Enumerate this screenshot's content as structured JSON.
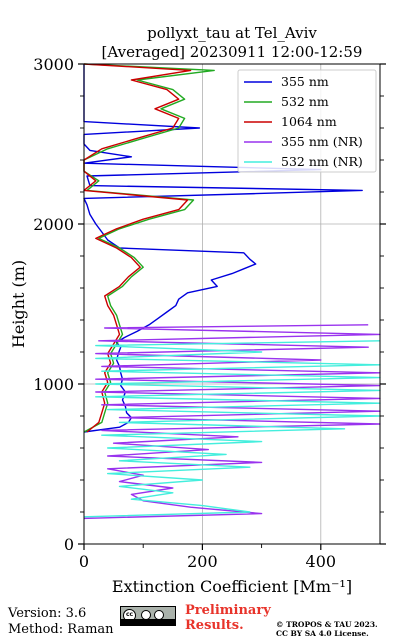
{
  "chart_data": {
    "type": "line",
    "title": "pollyxt_tau at Tel_Aviv",
    "subtitle": "[Averaged] 20230911 12:00-12:59",
    "xlabel": "Extinction Coefficient [Mm⁻¹]",
    "ylabel": "Height (m)",
    "xlim": [
      0,
      500
    ],
    "ylim": [
      0,
      3000
    ],
    "xticks": [
      0,
      200,
      400
    ],
    "yticks": [
      0,
      1000,
      2000,
      3000
    ],
    "grid": true,
    "legend_position": "top-right",
    "series": [
      {
        "name": "355 nm",
        "color": "#0000dd",
        "points": [
          [
            0,
            700
          ],
          [
            60,
            730
          ],
          [
            75,
            760
          ],
          [
            80,
            790
          ],
          [
            72,
            820
          ],
          [
            70,
            860
          ],
          [
            65,
            900
          ],
          [
            70,
            950
          ],
          [
            62,
            990
          ],
          [
            65,
            1030
          ],
          [
            62,
            1070
          ],
          [
            60,
            1110
          ],
          [
            55,
            1150
          ],
          [
            58,
            1190
          ],
          [
            62,
            1230
          ],
          [
            55,
            1260
          ],
          [
            68,
            1290
          ],
          [
            90,
            1330
          ],
          [
            110,
            1370
          ],
          [
            125,
            1410
          ],
          [
            140,
            1450
          ],
          [
            155,
            1490
          ],
          [
            160,
            1530
          ],
          [
            175,
            1570
          ],
          [
            225,
            1610
          ],
          [
            215,
            1650
          ],
          [
            250,
            1690
          ],
          [
            270,
            1720
          ],
          [
            290,
            1750
          ],
          [
            280,
            1780
          ],
          [
            270,
            1820
          ],
          [
            60,
            1850
          ],
          [
            40,
            1900
          ],
          [
            30,
            1950
          ],
          [
            20,
            2000
          ],
          [
            10,
            2060
          ],
          [
            5,
            2120
          ],
          [
            0,
            2160
          ],
          [
            290,
            2190
          ],
          [
            470,
            2210
          ],
          [
            10,
            2240
          ],
          [
            5,
            2300
          ],
          [
            400,
            2340
          ],
          [
            0,
            2380
          ],
          [
            80,
            2420
          ],
          [
            10,
            2460
          ],
          [
            0,
            2500
          ],
          [
            0,
            2560
          ],
          [
            195,
            2600
          ],
          [
            0,
            2640
          ],
          [
            0,
            2700
          ],
          [
            0,
            2800
          ],
          [
            0,
            2900
          ],
          [
            0,
            3000
          ]
        ]
      },
      {
        "name": "532 nm",
        "color": "#22aa22",
        "points": [
          [
            0,
            700
          ],
          [
            30,
            760
          ],
          [
            35,
            820
          ],
          [
            40,
            880
          ],
          [
            35,
            950
          ],
          [
            45,
            1010
          ],
          [
            40,
            1070
          ],
          [
            50,
            1130
          ],
          [
            45,
            1190
          ],
          [
            55,
            1250
          ],
          [
            65,
            1310
          ],
          [
            60,
            1370
          ],
          [
            55,
            1430
          ],
          [
            45,
            1490
          ],
          [
            40,
            1550
          ],
          [
            65,
            1610
          ],
          [
            80,
            1670
          ],
          [
            100,
            1730
          ],
          [
            85,
            1790
          ],
          [
            60,
            1850
          ],
          [
            25,
            1910
          ],
          [
            60,
            1970
          ],
          [
            110,
            2030
          ],
          [
            170,
            2090
          ],
          [
            185,
            2150
          ],
          [
            5,
            2210
          ],
          [
            25,
            2270
          ],
          [
            0,
            2330
          ],
          [
            0,
            2400
          ],
          [
            40,
            2470
          ],
          [
            95,
            2530
          ],
          [
            160,
            2600
          ],
          [
            170,
            2660
          ],
          [
            130,
            2720
          ],
          [
            170,
            2780
          ],
          [
            150,
            2840
          ],
          [
            90,
            2900
          ],
          [
            220,
            2960
          ],
          [
            0,
            3000
          ]
        ]
      },
      {
        "name": "1064 nm",
        "color": "#cc0000",
        "points": [
          [
            5,
            700
          ],
          [
            25,
            760
          ],
          [
            30,
            820
          ],
          [
            35,
            880
          ],
          [
            30,
            950
          ],
          [
            40,
            1010
          ],
          [
            35,
            1070
          ],
          [
            45,
            1130
          ],
          [
            40,
            1190
          ],
          [
            50,
            1250
          ],
          [
            60,
            1310
          ],
          [
            55,
            1370
          ],
          [
            50,
            1430
          ],
          [
            40,
            1490
          ],
          [
            35,
            1550
          ],
          [
            60,
            1610
          ],
          [
            75,
            1670
          ],
          [
            95,
            1730
          ],
          [
            80,
            1790
          ],
          [
            55,
            1850
          ],
          [
            20,
            1910
          ],
          [
            55,
            1970
          ],
          [
            100,
            2030
          ],
          [
            160,
            2090
          ],
          [
            175,
            2150
          ],
          [
            0,
            2210
          ],
          [
            20,
            2270
          ],
          [
            0,
            2330
          ],
          [
            0,
            2400
          ],
          [
            30,
            2470
          ],
          [
            85,
            2530
          ],
          [
            150,
            2600
          ],
          [
            160,
            2660
          ],
          [
            120,
            2720
          ],
          [
            160,
            2780
          ],
          [
            140,
            2840
          ],
          [
            80,
            2900
          ],
          [
            180,
            2960
          ],
          [
            0,
            3000
          ]
        ]
      },
      {
        "name": "355 nm (NR)",
        "color": "#9933ee",
        "points": [
          [
            0,
            160
          ],
          [
            300,
            190
          ],
          [
            180,
            230
          ],
          [
            100,
            270
          ],
          [
            80,
            310
          ],
          [
            150,
            350
          ],
          [
            60,
            390
          ],
          [
            100,
            430
          ],
          [
            40,
            470
          ],
          [
            300,
            510
          ],
          [
            40,
            550
          ],
          [
            210,
            590
          ],
          [
            50,
            630
          ],
          [
            260,
            670
          ],
          [
            30,
            710
          ],
          [
            500,
            750
          ],
          [
            60,
            790
          ],
          [
            500,
            830
          ],
          [
            30,
            870
          ],
          [
            500,
            910
          ],
          [
            20,
            950
          ],
          [
            500,
            990
          ],
          [
            20,
            1030
          ],
          [
            500,
            1070
          ],
          [
            30,
            1110
          ],
          [
            400,
            1150
          ],
          [
            20,
            1190
          ],
          [
            480,
            1230
          ],
          [
            25,
            1270
          ],
          [
            500,
            1310
          ],
          [
            35,
            1350
          ],
          [
            480,
            1370
          ]
        ]
      },
      {
        "name": "532 nm (NR)",
        "color": "#44eedd",
        "points": [
          [
            0,
            170
          ],
          [
            280,
            200
          ],
          [
            200,
            240
          ],
          [
            80,
            280
          ],
          [
            150,
            320
          ],
          [
            60,
            360
          ],
          [
            200,
            400
          ],
          [
            40,
            440
          ],
          [
            280,
            480
          ],
          [
            60,
            520
          ],
          [
            240,
            560
          ],
          [
            40,
            600
          ],
          [
            300,
            640
          ],
          [
            30,
            680
          ],
          [
            440,
            720
          ],
          [
            60,
            760
          ],
          [
            500,
            800
          ],
          [
            40,
            840
          ],
          [
            500,
            880
          ],
          [
            20,
            920
          ],
          [
            500,
            960
          ],
          [
            20,
            1000
          ],
          [
            500,
            1040
          ],
          [
            30,
            1080
          ],
          [
            500,
            1120
          ],
          [
            20,
            1160
          ],
          [
            300,
            1200
          ],
          [
            20,
            1240
          ],
          [
            500,
            1270
          ]
        ]
      }
    ]
  },
  "footer": {
    "version": "Version: 3.6",
    "method": "Method: Raman",
    "preliminary_line1": "Preliminary",
    "preliminary_line2": "Results.",
    "copyright_line1": "© TROPOS & TAU 2023.",
    "copyright_line2": "CC BY SA 4.0 License."
  },
  "license_badge": {
    "icon": "cc-by-sa-icon",
    "label": "cc"
  }
}
